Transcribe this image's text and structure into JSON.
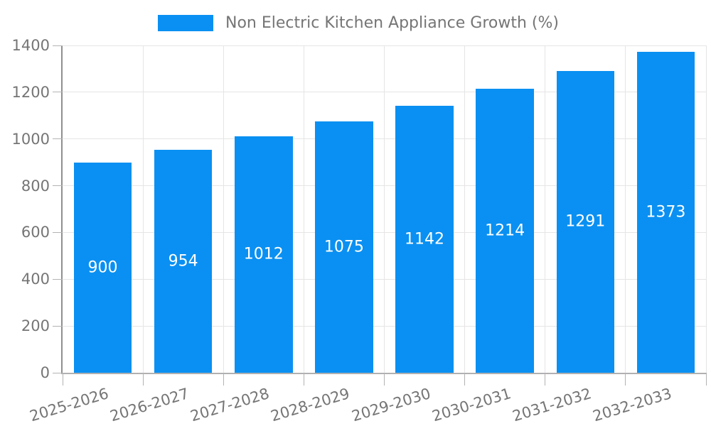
{
  "chart_data": {
    "type": "bar",
    "title": "Non Electric Kitchen Appliance Growth (%)",
    "categories": [
      "2025-2026",
      "2026-2027",
      "2027-2028",
      "2028-2029",
      "2029-2030",
      "2030-2031",
      "2031-2032",
      "2032-2033"
    ],
    "series": [
      {
        "name": "Non Electric Kitchen Appliance Growth (%)",
        "values": [
          900,
          954,
          1012,
          1075,
          1142,
          1214,
          1291,
          1373
        ]
      }
    ],
    "bar_value_labels": [
      "900",
      "954",
      "1012",
      "1075",
      "1142",
      "1214",
      "1291",
      "1373"
    ],
    "xlabel": "",
    "ylabel": "",
    "ylim": [
      0,
      1400
    ],
    "yticks": [
      0,
      200,
      400,
      600,
      800,
      1000,
      1200,
      1400
    ],
    "grid": true,
    "gridlines": "horizontal-and-vertical-at-category-boundaries",
    "legend_position": "top-center",
    "x_tick_label_rotation_deg": -17,
    "colors": {
      "bar": "#0a90f2",
      "axis_text": "#757575",
      "bar_label_text": "#ffffff",
      "gridline": "#e5e5e5",
      "axis_line": "#8f8f8f",
      "axis_line2": "#b0b0b0",
      "tick": "#b3b3b3",
      "background": "#ffffff"
    }
  }
}
